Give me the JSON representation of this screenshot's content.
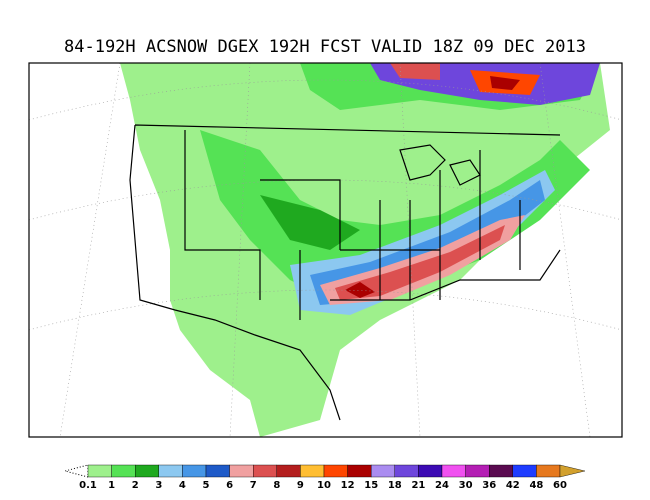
{
  "header": {
    "title": "84-192H ACSNOW DGEX 192H FCST VALID 18Z 09 DEC 2013"
  },
  "colorbar": {
    "labels": [
      "0.1",
      "1",
      "2",
      "3",
      "4",
      "5",
      "6",
      "7",
      "8",
      "9",
      "10",
      "12",
      "15",
      "18",
      "21",
      "24",
      "30",
      "36",
      "42",
      "48",
      "60"
    ],
    "colors": [
      "#9ef08c",
      "#55e255",
      "#1fa91f",
      "#8cc8f0",
      "#4696e6",
      "#1e5ac8",
      "#f0a0a0",
      "#dc5050",
      "#b41e1e",
      "#ffbe32",
      "#ff4600",
      "#aa0000",
      "#aa8cf0",
      "#6e46dc",
      "#3c0ab4",
      "#f050f0",
      "#b41eb4",
      "#5a0a50",
      "#1e3cff",
      "#e6781e"
    ],
    "over_color": "#d2a02d"
  }
}
